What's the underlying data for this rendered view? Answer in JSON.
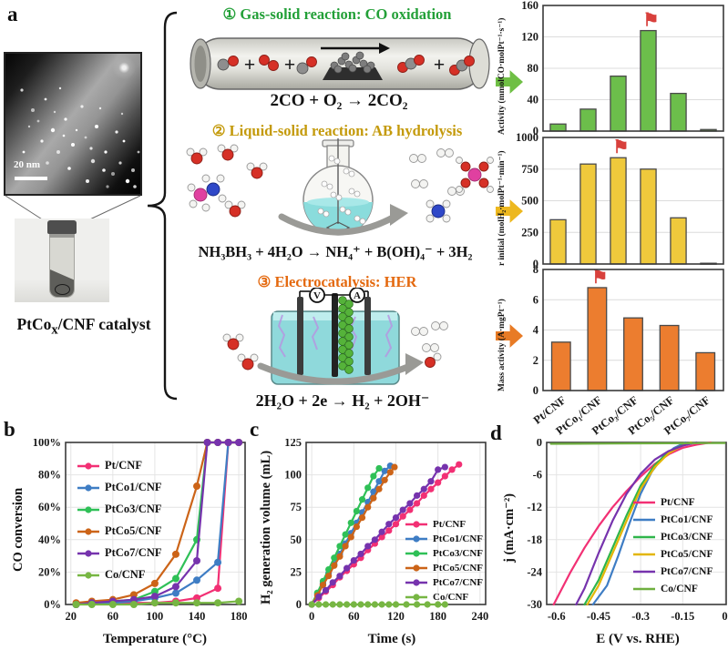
{
  "panels": {
    "a": "a",
    "b": "b",
    "c": "c",
    "d": "d"
  },
  "panel_a": {
    "tem_scale_bar": "20 nm",
    "catalyst_label": {
      "pre": "PtCo",
      "sub": "x",
      "post": "/CNF catalyst"
    },
    "meters": {
      "volt": "V",
      "amp": "A"
    },
    "reactions": [
      {
        "number": "①",
        "title": "Gas-solid reaction: CO oxidation",
        "equation": "2CO + O₂ → 2CO₂",
        "title_color": "#23A038",
        "arrow_color": "#6FBF45"
      },
      {
        "number": "②",
        "title": "Liquid-solid reaction: AB hydrolysis",
        "equation": "NH₃BH₃ + 4H₂O → NH₄⁺ + B(OH)₄⁻ + 3H₂",
        "title_color": "#C49A0B",
        "arrow_color": "#EDB81F"
      },
      {
        "number": "③",
        "title": "Electrocatalysis: HER",
        "equation": "2H₂O + 2e → H₂ + 2OH⁻",
        "title_color": "#E4690F",
        "arrow_color": "#E87B25"
      }
    ]
  },
  "chart_data": [
    {
      "id": "co-oxidation-activity",
      "type": "bar",
      "ylabel": "Activity (mmolCO·molPt⁻¹·s⁻¹)",
      "categories": [
        "Pt/CNF",
        "PtCo₁/CNF",
        "PtCo₃/CNF",
        "PtCo₅/CNF",
        "PtCo₇/CNF",
        ""
      ],
      "values": [
        9,
        28,
        70,
        128,
        48,
        2
      ],
      "ylim": [
        0,
        160
      ],
      "yticks": [
        0,
        40,
        80,
        120,
        160
      ],
      "bar_color": "#6CBE4B",
      "flag_index": 3,
      "flag": "⚑",
      "flag_color": "#D8403C",
      "show_xlabels": false
    },
    {
      "id": "ab-hydrolysis-rate",
      "type": "bar",
      "ylabel": "r initial (molH₂·molPt⁻¹·min⁻¹)",
      "categories": [
        "Pt/CNF",
        "PtCo₁/CNF",
        "PtCo₃/CNF",
        "PtCo₅/CNF",
        "PtCo₇/CNF",
        ""
      ],
      "values": [
        350,
        790,
        840,
        750,
        365,
        6
      ],
      "ylim": [
        0,
        1000
      ],
      "yticks": [
        0,
        250,
        500,
        750,
        1000
      ],
      "bar_color": "#EFC93C",
      "flag_index": 2,
      "flag": "⚑",
      "flag_color": "#D8403C",
      "show_xlabels": false
    },
    {
      "id": "her-mass-activity",
      "type": "bar",
      "ylabel": "Mass activity (A·mgPt⁻¹)",
      "categories": [
        "Pt/CNF",
        "PtCo₁/CNF",
        "PtCo₃/CNF",
        "PtCo₅/CNF",
        "PtCo₇/CNF"
      ],
      "values": [
        3.2,
        6.8,
        4.8,
        4.3,
        2.5
      ],
      "ylim": [
        0,
        8
      ],
      "yticks": [
        0,
        2,
        4,
        6,
        8
      ],
      "bar_color": "#EC7D2F",
      "flag_index": 1,
      "flag": "⚑",
      "flag_color": "#D8403C",
      "show_xlabels": true
    },
    {
      "id": "co-conversion-vs-temperature",
      "type": "line",
      "xlabel": "Temperature (°C)",
      "ylabel": "CO conversion",
      "xlim": [
        15,
        186
      ],
      "xticks": [
        20,
        60,
        100,
        140,
        180
      ],
      "xtick_labels": [
        "20",
        "60",
        "100",
        "140",
        "180"
      ],
      "ylim": [
        0,
        100
      ],
      "yticks": [
        0,
        20,
        40,
        60,
        80,
        100
      ],
      "ytick_labels": [
        "0%",
        "20%",
        "40%",
        "60%",
        "80%",
        "100%"
      ],
      "marker": true,
      "marker_r": 4,
      "legend_position": "top-left",
      "series": [
        {
          "name": "Pt/CNF",
          "color": "#F23074",
          "x": [
            25,
            40,
            60,
            80,
            100,
            120,
            140,
            160,
            170,
            180
          ],
          "y": [
            0,
            1,
            1,
            1,
            1,
            2,
            4,
            10,
            100,
            100
          ]
        },
        {
          "name": "PtCo1/CNF",
          "color": "#3E7DC4",
          "x": [
            25,
            40,
            60,
            80,
            100,
            120,
            140,
            160,
            170,
            180
          ],
          "y": [
            0,
            1,
            1,
            2,
            4,
            7,
            15,
            26,
            100,
            100
          ]
        },
        {
          "name": "PtCo3/CNF",
          "color": "#2FC057",
          "x": [
            25,
            40,
            60,
            80,
            100,
            120,
            140,
            150,
            160,
            170,
            180
          ],
          "y": [
            0,
            1,
            2,
            3,
            8,
            16,
            40,
            100,
            100,
            100,
            100
          ]
        },
        {
          "name": "PtCo5/CNF",
          "color": "#CC6418",
          "x": [
            25,
            40,
            60,
            80,
            100,
            120,
            140,
            150,
            160,
            170,
            180
          ],
          "y": [
            1,
            2,
            3,
            6,
            13,
            31,
            73,
            100,
            100,
            100,
            100
          ]
        },
        {
          "name": "PtCo7/CNF",
          "color": "#7633AD",
          "x": [
            25,
            40,
            60,
            80,
            100,
            120,
            140,
            150,
            160,
            170,
            180
          ],
          "y": [
            0,
            1,
            2,
            3,
            5,
            11,
            27,
            100,
            100,
            100,
            100
          ]
        },
        {
          "name": "Co/CNF",
          "color": "#77B643",
          "x": [
            25,
            40,
            60,
            80,
            100,
            120,
            140,
            160,
            180
          ],
          "y": [
            0,
            0,
            0,
            0,
            1,
            1,
            1,
            1,
            2
          ]
        }
      ]
    },
    {
      "id": "h2-generation-vs-time",
      "type": "line",
      "xlabel": "Time (s)",
      "ylabel": "H₂ generation volume (mL)",
      "xlim": [
        -8,
        248
      ],
      "xticks": [
        0,
        60,
        120,
        180,
        240
      ],
      "xtick_labels": [
        "0",
        "60",
        "120",
        "180",
        "240"
      ],
      "ylim": [
        0,
        125
      ],
      "yticks": [
        0,
        25,
        50,
        75,
        100,
        125
      ],
      "ytick_labels": [
        "0",
        "25",
        "50",
        "75",
        "100",
        "125"
      ],
      "marker": true,
      "marker_r": 3.6,
      "legend_position": "right",
      "series": [
        {
          "name": "Pt/CNF",
          "color": "#F23074",
          "x": [
            0,
            10,
            20,
            30,
            40,
            50,
            60,
            70,
            80,
            90,
            100,
            110,
            120,
            130,
            140,
            150,
            160,
            170,
            180,
            190,
            200,
            210
          ],
          "y": [
            0,
            5,
            10,
            15,
            21,
            26,
            31,
            36,
            42,
            47,
            52,
            57,
            62,
            68,
            73,
            78,
            84,
            89,
            94,
            99,
            104,
            108
          ]
        },
        {
          "name": "PtCo1/CNF",
          "color": "#3E7DC4",
          "x": [
            0,
            8,
            16,
            24,
            32,
            40,
            48,
            56,
            64,
            72,
            80,
            88,
            96,
            104,
            112
          ],
          "y": [
            0,
            8,
            16,
            24,
            31,
            39,
            47,
            55,
            63,
            71,
            79,
            87,
            95,
            103,
            107
          ]
        },
        {
          "name": "PtCo3/CNF",
          "color": "#2FC057",
          "x": [
            0,
            8,
            16,
            24,
            32,
            40,
            48,
            56,
            64,
            72,
            80,
            88,
            96
          ],
          "y": [
            0,
            9,
            18,
            27,
            36,
            45,
            54,
            63,
            72,
            81,
            90,
            99,
            105
          ]
        },
        {
          "name": "PtCo5/CNF",
          "color": "#CC6418",
          "x": [
            0,
            8,
            16,
            24,
            32,
            40,
            48,
            56,
            64,
            72,
            80,
            88,
            96,
            104,
            112,
            118
          ],
          "y": [
            0,
            7,
            15,
            22,
            30,
            37,
            45,
            52,
            60,
            67,
            75,
            82,
            89,
            96,
            102,
            106
          ]
        },
        {
          "name": "PtCo7/CNF",
          "color": "#7633AD",
          "x": [
            0,
            10,
            20,
            30,
            40,
            50,
            60,
            70,
            80,
            90,
            100,
            110,
            120,
            130,
            140,
            150,
            160,
            170,
            180,
            190
          ],
          "y": [
            0,
            6,
            11,
            17,
            22,
            28,
            34,
            39,
            45,
            50,
            56,
            62,
            67,
            73,
            78,
            84,
            89,
            95,
            104,
            106
          ]
        },
        {
          "name": "Co/CNF",
          "color": "#77B643",
          "x": [
            0,
            10,
            20,
            30,
            40,
            50,
            60,
            70,
            80,
            90,
            100,
            110,
            120,
            135,
            150,
            165,
            180,
            190
          ],
          "y": [
            0,
            0,
            0,
            0,
            0,
            0,
            0,
            0,
            0,
            0,
            0,
            0,
            0,
            0,
            0,
            0,
            0,
            0
          ]
        }
      ]
    },
    {
      "id": "her-polarization",
      "type": "line",
      "xlabel": "E (V vs. RHE)",
      "ylabel": "j (mA·cm⁻²)",
      "xlim": [
        -0.635,
        0.005
      ],
      "xticks": [
        -0.6,
        -0.45,
        -0.3,
        -0.15,
        0
      ],
      "xtick_labels": [
        "-0.6",
        "-0.45",
        "-0.3",
        "-0.15",
        "0"
      ],
      "ylim": [
        -30,
        0
      ],
      "yticks": [
        0,
        -6,
        -12,
        -18,
        -24,
        -30
      ],
      "ytick_labels": [
        "0",
        "-6",
        "-12",
        "-18",
        "-24",
        "-30"
      ],
      "marker": false,
      "legend_position": "right",
      "series": [
        {
          "name": "Pt/CNF",
          "color": "#F23074",
          "x": [
            -0.05,
            -0.1,
            -0.15,
            -0.2,
            -0.25,
            -0.3,
            -0.35,
            -0.4,
            -0.45,
            -0.5,
            -0.55,
            -0.61
          ],
          "y": [
            0,
            -0.4,
            -1,
            -2.2,
            -4,
            -6.3,
            -9,
            -12,
            -15.5,
            -19.5,
            -24,
            -30
          ]
        },
        {
          "name": "PtCo1/CNF",
          "color": "#3E7DC4",
          "x": [
            -0.14,
            -0.18,
            -0.22,
            -0.26,
            -0.3,
            -0.34,
            -0.38,
            -0.42,
            -0.47
          ],
          "y": [
            0,
            -1,
            -2.6,
            -5.4,
            -9.5,
            -15,
            -21,
            -26.5,
            -30
          ]
        },
        {
          "name": "PtCo3/CNF",
          "color": "#2FB54A",
          "x": [
            -0.12,
            -0.16,
            -0.2,
            -0.25,
            -0.3,
            -0.35,
            -0.4,
            -0.45,
            -0.5
          ],
          "y": [
            0,
            -0.7,
            -1.8,
            -4.2,
            -8,
            -13.5,
            -19.5,
            -25.5,
            -30
          ]
        },
        {
          "name": "PtCo5/CNF",
          "color": "#E3B607",
          "x": [
            -0.12,
            -0.16,
            -0.2,
            -0.25,
            -0.3,
            -0.35,
            -0.4,
            -0.45,
            -0.49
          ],
          "y": [
            0,
            -0.8,
            -2,
            -4.6,
            -8.6,
            -14.5,
            -20.5,
            -26.5,
            -30
          ]
        },
        {
          "name": "PtCo7/CNF",
          "color": "#7633AD",
          "x": [
            -0.1,
            -0.15,
            -0.2,
            -0.25,
            -0.3,
            -0.35,
            -0.4,
            -0.45,
            -0.5,
            -0.53
          ],
          "y": [
            0,
            -0.6,
            -1.6,
            -3.2,
            -5.8,
            -9.5,
            -14.5,
            -20.5,
            -27,
            -30
          ]
        },
        {
          "name": "Co/CNF",
          "color": "#6FAF3F",
          "x": [
            -0.62,
            -0.4,
            -0.2,
            0.0
          ],
          "y": [
            -0.25,
            -0.2,
            -0.15,
            -0.1
          ]
        }
      ]
    }
  ]
}
